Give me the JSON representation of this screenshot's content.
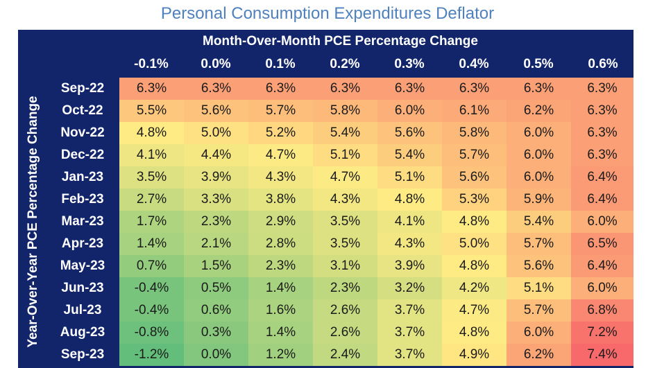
{
  "chart_data": {
    "type": "heatmap",
    "title": "Personal Consumption Expenditures Deflator",
    "xlabel": "Month-Over-Month PCE Percentage Change",
    "ylabel": "Year-Over-Year PCE Percentage Change",
    "columns": [
      "-0.1%",
      "0.0%",
      "0.1%",
      "0.2%",
      "0.3%",
      "0.4%",
      "0.5%",
      "0.6%"
    ],
    "rows": [
      "Sep-22",
      "Oct-22",
      "Nov-22",
      "Dec-22",
      "Jan-23",
      "Feb-23",
      "Mar-23",
      "Apr-23",
      "May-23",
      "Jun-23",
      "Jul-23",
      "Aug-23",
      "Sep-23"
    ],
    "values": [
      [
        6.3,
        6.3,
        6.3,
        6.3,
        6.3,
        6.3,
        6.3,
        6.3
      ],
      [
        5.5,
        5.6,
        5.7,
        5.8,
        6.0,
        6.1,
        6.2,
        6.3
      ],
      [
        4.8,
        5.0,
        5.2,
        5.4,
        5.6,
        5.8,
        6.0,
        6.3
      ],
      [
        4.1,
        4.4,
        4.7,
        5.1,
        5.4,
        5.7,
        6.0,
        6.3
      ],
      [
        3.5,
        3.9,
        4.3,
        4.7,
        5.1,
        5.6,
        6.0,
        6.4
      ],
      [
        2.7,
        3.3,
        3.8,
        4.3,
        4.8,
        5.3,
        5.9,
        6.4
      ],
      [
        1.7,
        2.3,
        2.9,
        3.5,
        4.1,
        4.8,
        5.4,
        6.0
      ],
      [
        1.4,
        2.1,
        2.8,
        3.5,
        4.3,
        5.0,
        5.7,
        6.5
      ],
      [
        0.7,
        1.5,
        2.3,
        3.1,
        3.9,
        4.8,
        5.6,
        6.4
      ],
      [
        -0.4,
        0.5,
        1.4,
        2.3,
        3.2,
        4.2,
        5.1,
        6.0
      ],
      [
        -0.4,
        0.6,
        1.6,
        2.6,
        3.7,
        4.7,
        5.7,
        6.8
      ],
      [
        -0.8,
        0.3,
        1.4,
        2.6,
        3.7,
        4.8,
        6.0,
        7.2
      ],
      [
        -1.2,
        0.0,
        1.2,
        2.4,
        3.7,
        4.9,
        6.2,
        7.4
      ]
    ],
    "cell_labels": [
      [
        "6.3%",
        "6.3%",
        "6.3%",
        "6.3%",
        "6.3%",
        "6.3%",
        "6.3%",
        "6.3%"
      ],
      [
        "5.5%",
        "5.6%",
        "5.7%",
        "5.8%",
        "6.0%",
        "6.1%",
        "6.2%",
        "6.3%"
      ],
      [
        "4.8%",
        "5.0%",
        "5.2%",
        "5.4%",
        "5.6%",
        "5.8%",
        "6.0%",
        "6.3%"
      ],
      [
        "4.1%",
        "4.4%",
        "4.7%",
        "5.1%",
        "5.4%",
        "5.7%",
        "6.0%",
        "6.3%"
      ],
      [
        "3.5%",
        "3.9%",
        "4.3%",
        "4.7%",
        "5.1%",
        "5.6%",
        "6.0%",
        "6.4%"
      ],
      [
        "2.7%",
        "3.3%",
        "3.8%",
        "4.3%",
        "4.8%",
        "5.3%",
        "5.9%",
        "6.4%"
      ],
      [
        "1.7%",
        "2.3%",
        "2.9%",
        "3.5%",
        "4.1%",
        "4.8%",
        "5.4%",
        "6.0%"
      ],
      [
        "1.4%",
        "2.1%",
        "2.8%",
        "3.5%",
        "4.3%",
        "5.0%",
        "5.7%",
        "6.5%"
      ],
      [
        "0.7%",
        "1.5%",
        "2.3%",
        "3.1%",
        "3.9%",
        "4.8%",
        "5.6%",
        "6.4%"
      ],
      [
        "-0.4%",
        "0.5%",
        "1.4%",
        "2.3%",
        "3.2%",
        "4.2%",
        "5.1%",
        "6.0%"
      ],
      [
        "-0.4%",
        "0.6%",
        "1.6%",
        "2.6%",
        "3.7%",
        "4.7%",
        "5.7%",
        "6.8%"
      ],
      [
        "-0.8%",
        "0.3%",
        "1.4%",
        "2.6%",
        "3.7%",
        "4.8%",
        "6.0%",
        "7.2%"
      ],
      [
        "-1.2%",
        "0.0%",
        "1.2%",
        "2.4%",
        "3.7%",
        "4.9%",
        "6.2%",
        "7.4%"
      ]
    ],
    "color_scale": {
      "low": "#63be7b",
      "mid": "#ffeb84",
      "high": "#f8696b"
    },
    "header_color": "#12256b",
    "title_color": "#4f81bd"
  }
}
